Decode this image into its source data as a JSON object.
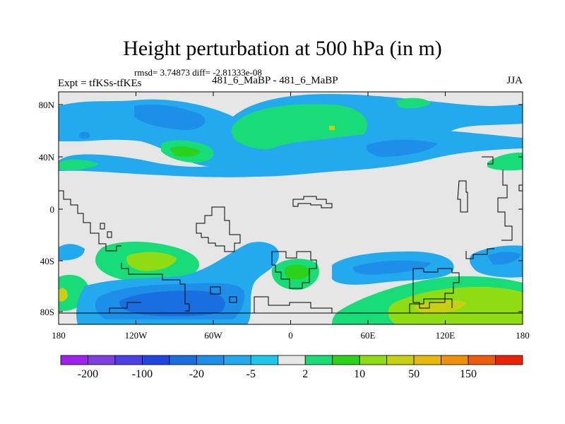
{
  "title": "Height perturbation at 500 hPa (in m)",
  "stats_text": "rmsd= 3.74873 diff= -2.81333e-08",
  "left_label": "Expt = tfKSs-tfKEs",
  "center_label": "481_6_MaBP - 481_6_MaBP",
  "right_label": "JJA",
  "lat_ticks": [
    "80N",
    "40N",
    "0",
    "40S",
    "80S"
  ],
  "lon_ticks": [
    "180",
    "120W",
    "60W",
    "0",
    "60E",
    "120E",
    "180"
  ],
  "colorbar": {
    "colors": [
      "#a020f0",
      "#7e3fe0",
      "#4b3fe8",
      "#2045e0",
      "#1a6fe0",
      "#1e8fe8",
      "#22a9ee",
      "#1cc8ea",
      "#e6e6e6",
      "#18dc78",
      "#2ad21a",
      "#90dc14",
      "#c8d010",
      "#e8b80c",
      "#f0900a",
      "#ee5a0c",
      "#ec2208"
    ],
    "tick_labels": [
      "-200",
      "-100",
      "-20",
      "-5",
      "2",
      "10",
      "50",
      "150"
    ]
  },
  "palette": {
    "background": "#e6e6e6",
    "light_blue": "#22a9ee",
    "mid_blue": "#1e8fe8",
    "dark_blue": "#1a6fe0",
    "teal": "#1cc8ea",
    "green": "#18dc78",
    "bright_green": "#2ad21a",
    "yellow_green": "#90dc14",
    "olive": "#c8d010",
    "orange": "#f0900a",
    "coast": "#000000"
  }
}
